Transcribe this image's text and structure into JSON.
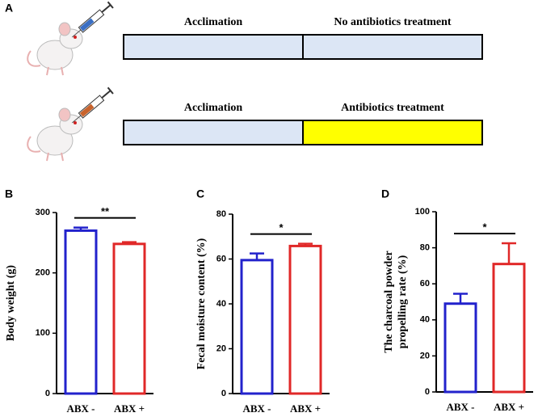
{
  "diagram": {
    "panel": "A",
    "rows": [
      {
        "phases": [
          "Acclimation",
          "No antibiotics treatment"
        ],
        "colors": [
          "#dce6f5",
          "#dce6f5"
        ],
        "syringe": "#3a6fc4"
      },
      {
        "phases": [
          "Acclimation",
          "Antibiotics treatment"
        ],
        "colors": [
          "#dce6f5",
          "#ffff00"
        ],
        "syringe": "#c8632c"
      }
    ]
  },
  "chart_data": [
    {
      "type": "bar",
      "panel": "B",
      "ylabel": [
        "Body weight (g)"
      ],
      "categories": [
        "ABX -",
        "ABX +"
      ],
      "values": [
        270,
        248
      ],
      "errors": [
        5,
        3
      ],
      "colors": [
        "#2222cc",
        "#e02828"
      ],
      "ylim": [
        0,
        300
      ],
      "yticks": [
        0,
        100,
        200,
        300
      ],
      "significance": "**"
    },
    {
      "type": "bar",
      "panel": "C",
      "ylabel": [
        "Fecal moisture content (%)"
      ],
      "categories": [
        "ABX -",
        "ABX +"
      ],
      "values": [
        59.5,
        65.8
      ],
      "errors": [
        3,
        1
      ],
      "colors": [
        "#2222cc",
        "#e02828"
      ],
      "ylim": [
        0,
        80
      ],
      "yticks": [
        0,
        20,
        40,
        60,
        80
      ],
      "significance": "*"
    },
    {
      "type": "bar",
      "panel": "D",
      "ylabel": [
        "The charcoal powder",
        "propelling rate (%)"
      ],
      "categories": [
        "ABX -",
        "ABX +"
      ],
      "values": [
        49,
        71
      ],
      "errors": [
        5.5,
        11.5
      ],
      "colors": [
        "#2222cc",
        "#e02828"
      ],
      "ylim": [
        0,
        100
      ],
      "yticks": [
        0,
        20,
        40,
        60,
        80,
        100
      ],
      "significance": "*"
    }
  ]
}
